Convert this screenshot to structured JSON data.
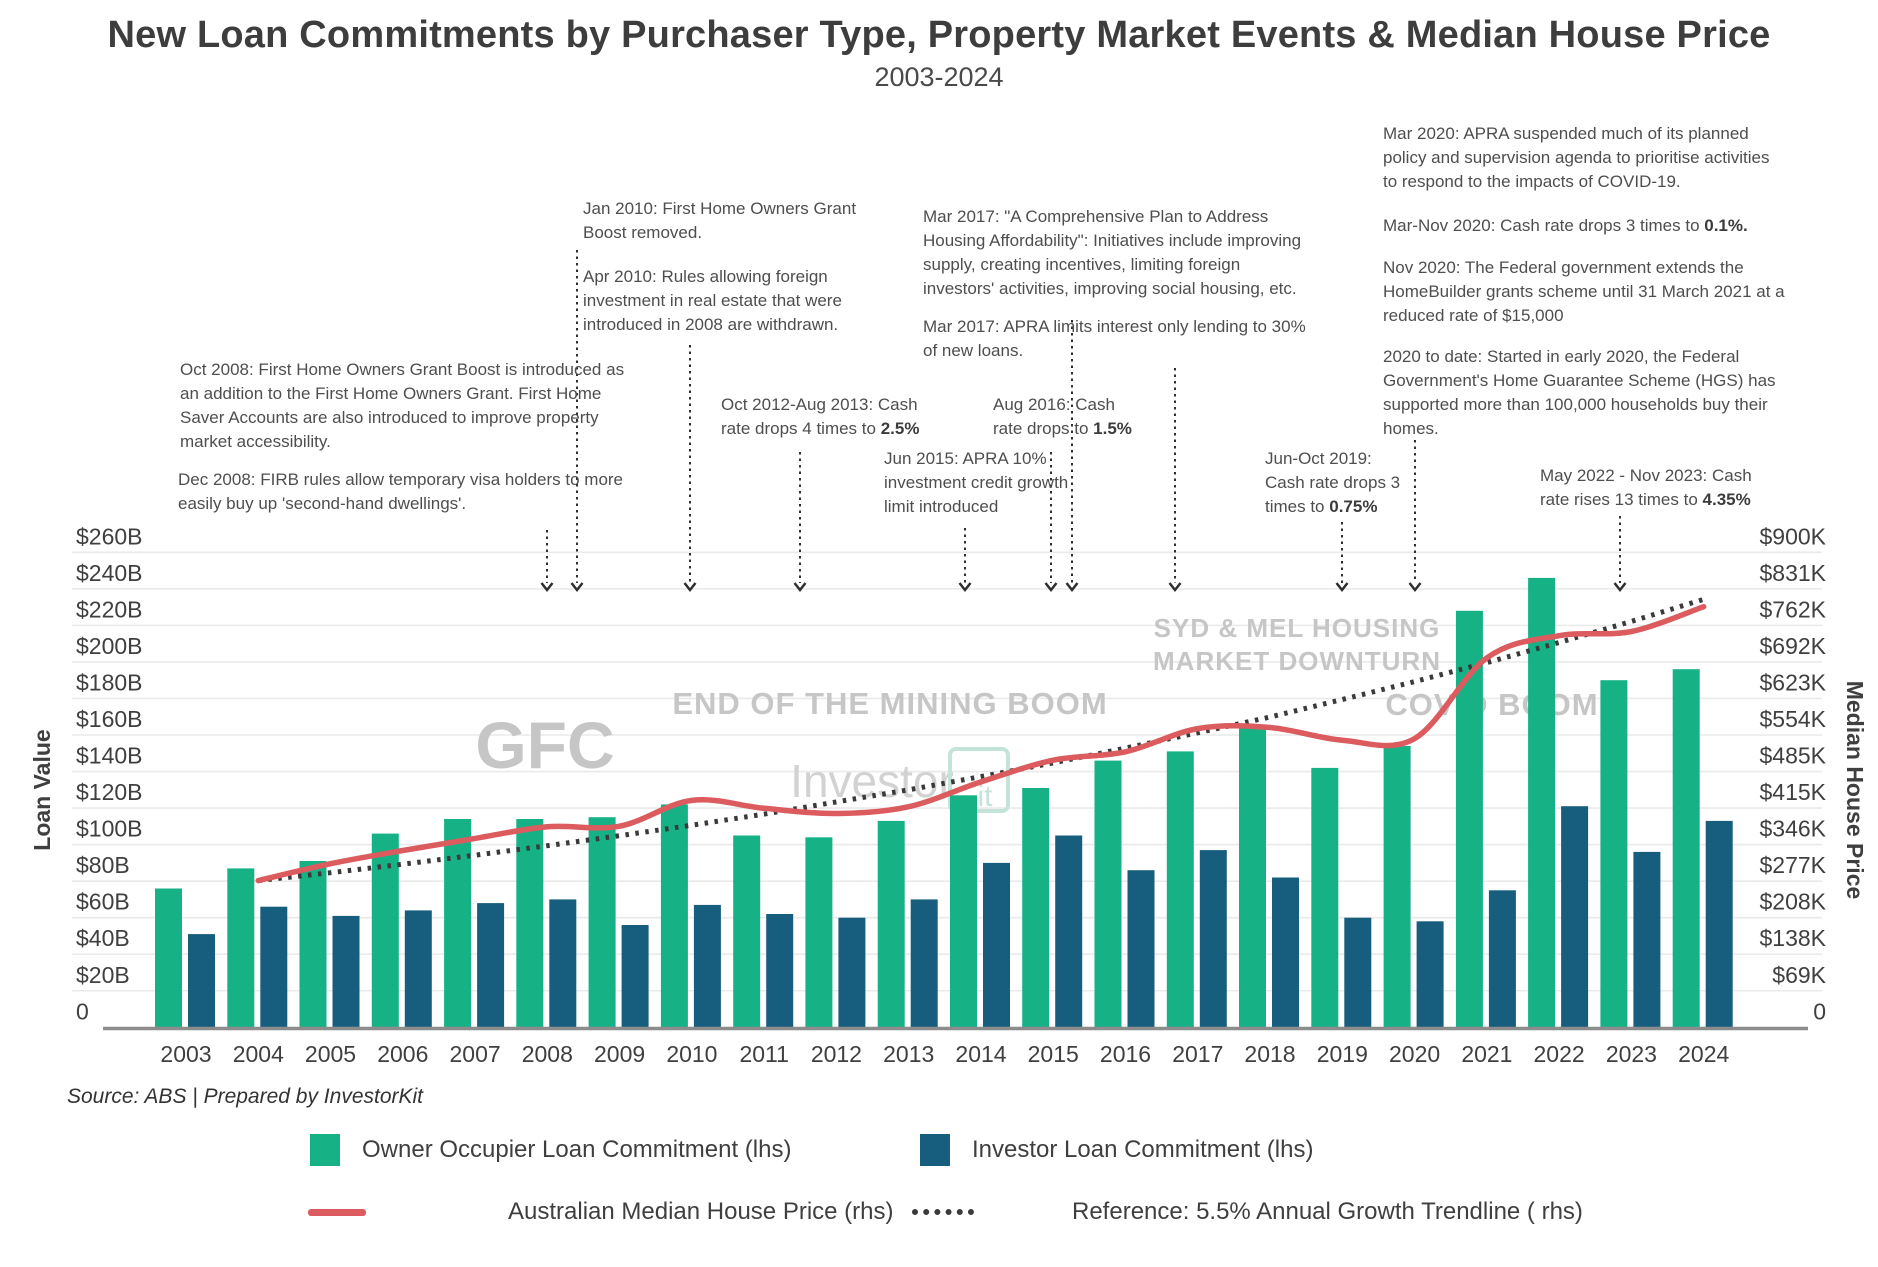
{
  "title": "New Loan Commitments by Purchaser Type, Property Market Events & Median House Price",
  "subtitle": "2003-2024",
  "source": "Source: ABS | Prepared by InvestorKit",
  "colors": {
    "owner_bar": "#16b286",
    "investor_bar": "#175e7e",
    "price_line": "#db5b5e",
    "trend_line": "#3a3a3a",
    "gridline": "#eaeaea",
    "axis_line": "#8c8c8c",
    "watermark": "#c6c6c6",
    "logo_teal": "#c4e4da",
    "text": "#3f3f3f"
  },
  "watermarks": {
    "gfc": "GFC",
    "mining": "END OF THE MINING BOOM",
    "sydmel1": "SYD & MEL HOUSING",
    "sydmel2": "MARKET DOWNTURN",
    "covid": "COVID BOOM",
    "brand": "Investor",
    "brand2": "it"
  },
  "legend": [
    {
      "label": "Owner Occupier Loan Commitment (lhs)"
    },
    {
      "label": "Investor Loan Commitment (lhs)"
    },
    {
      "label": "Australian Median House Price (rhs)"
    },
    {
      "label": "Reference: 5.5% Annual Growth Trendline ( rhs)"
    }
  ],
  "annotations": [
    {
      "text": "Oct 2008: First Home Owners Grant Boost is introduced as\nan addition to the First Home Owners Grant. First Home\nSaver Accounts are also introduced to improve property\nmarket accessibility.",
      "bold": ""
    },
    {
      "text": "Dec 2008: FIRB rules allow temporary visa holders to more\neasily buy up 'second-hand dwellings'.",
      "bold": ""
    },
    {
      "text": "Jan 2010: First Home Owners Grant\nBoost removed.",
      "bold": ""
    },
    {
      "text": "Apr 2010: Rules allowing foreign\ninvestment in real estate that were\nintroduced in 2008 are withdrawn.",
      "bold": ""
    },
    {
      "text": "Oct 2012-Aug 2013: Cash\nrate drops 4 times to  ",
      "bold": "2.5%"
    },
    {
      "text": "Jun 2015: APRA 10%\ninvestment credit growth\nlimit introduced",
      "bold": ""
    },
    {
      "text": "Aug 2016: Cash\nrate drops to ",
      "bold": "1.5%"
    },
    {
      "text": "Mar 2017: \"A Comprehensive Plan to Address\nHousing Affordability\": Initiatives include improving\nsupply, creating incentives, limiting foreign\ninvestors' activities, improving social housing, etc.",
      "bold": ""
    },
    {
      "text": "Mar 2017: APRA limits interest only lending to 30%\nof new loans.",
      "bold": ""
    },
    {
      "text": "Jun-Oct 2019:\nCash rate drops 3\ntimes to ",
      "bold": "0.75%"
    },
    {
      "text": "Mar 2020: APRA suspended much of its planned\npolicy and supervision agenda to prioritise activities\nto respond to the impacts of COVID-19.",
      "bold": ""
    },
    {
      "text": "Mar-Nov 2020: Cash rate drops 3 times to ",
      "bold": "0.1%."
    },
    {
      "text": "Nov 2020: The Federal government extends the\nHomeBuilder grants scheme until 31 March 2021 at a\nreduced rate of $15,000",
      "bold": ""
    },
    {
      "text": "2020 to date: Started in early 2020, the Federal\nGovernment's Home Guarantee Scheme (HGS) has\nsupported more than 100,000 households buy their\nhomes.",
      "bold": ""
    },
    {
      "text": "May 2022 - Nov 2023: Cash\nrate rises 13 times to ",
      "bold": "4.35%"
    }
  ],
  "chart_data": {
    "type": "bar",
    "subtype": "grouped-bar-with-lines",
    "categories": [
      2003,
      2004,
      2005,
      2006,
      2007,
      2008,
      2009,
      2010,
      2011,
      2012,
      2013,
      2014,
      2015,
      2016,
      2017,
      2018,
      2019,
      2020,
      2021,
      2022,
      2023,
      2024
    ],
    "series": [
      {
        "name": "Owner Occupier Loan Commitment (lhs)",
        "type": "bar",
        "axis": "left",
        "unit": "$B",
        "values": [
          76,
          87,
          91,
          106,
          114,
          114,
          115,
          122,
          105,
          104,
          113,
          127,
          131,
          146,
          151,
          164,
          142,
          154,
          228,
          246,
          190,
          196
        ]
      },
      {
        "name": "Investor Loan Commitment (lhs)",
        "type": "bar",
        "axis": "left",
        "unit": "$B",
        "values": [
          51,
          66,
          61,
          64,
          68,
          70,
          56,
          67,
          62,
          60,
          70,
          90,
          105,
          86,
          97,
          82,
          60,
          58,
          75,
          121,
          96,
          113
        ]
      },
      {
        "name": "Australian Median House Price (rhs)",
        "type": "line",
        "axis": "right",
        "unit": "$K",
        "values": [
          null,
          278,
          310,
          335,
          358,
          380,
          381,
          430,
          415,
          405,
          418,
          465,
          506,
          522,
          566,
          568,
          544,
          547,
          700,
          742,
          750,
          797
        ]
      },
      {
        "name": "Reference: 5.5% Annual Growth Trendline ( rhs)",
        "type": "dotted-line",
        "axis": "right",
        "unit": "$K",
        "values": [
          null,
          278,
          293,
          309,
          326,
          344,
          363,
          383,
          404,
          427,
          450,
          475,
          501,
          529,
          558,
          588,
          621,
          655,
          691,
          729,
          769,
          811
        ]
      }
    ],
    "y_left": {
      "label": "Loan Value",
      "min": 0,
      "max": 260,
      "tick_step": 20,
      "ticks": [
        "$260B",
        "$240B",
        "$220B",
        "$200B",
        "$180B",
        "$160B",
        "$140B",
        "$120B",
        "$100B",
        "$80B",
        "$60B",
        "$40B",
        "$20B",
        "0"
      ]
    },
    "y_right": {
      "label": "Median House Price",
      "min": 0,
      "max": 900,
      "ticks": [
        "$900K",
        "$831K",
        "$762K",
        "$692K",
        "$623K",
        "$554K",
        "$485K",
        "$415K",
        "$346K",
        "$277K",
        "$208K",
        "$138K",
        "$69K",
        "0"
      ]
    },
    "grid": true,
    "legend_position": "bottom"
  }
}
